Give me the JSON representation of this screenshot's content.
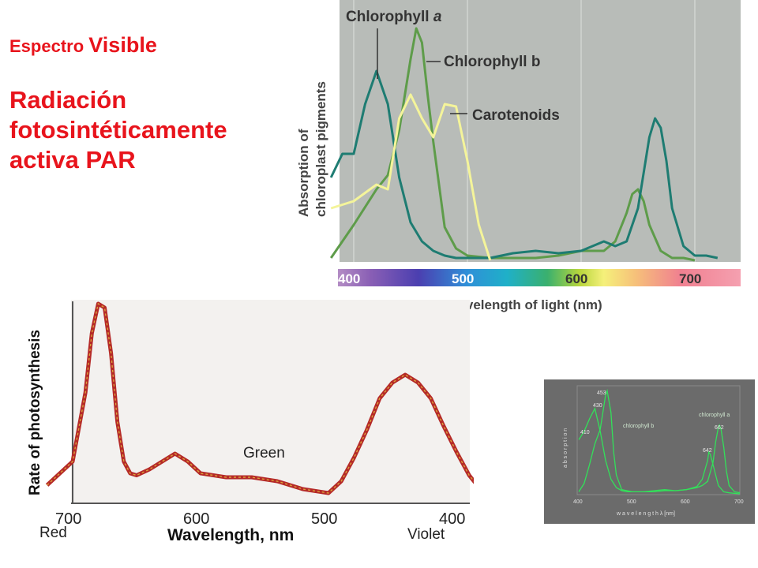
{
  "heading": {
    "prefix": "Espectro",
    "emphasis": "Visible",
    "title_line1": "Radiación",
    "title_line2": "fotosintéticamente",
    "title_line3": "activa PAR"
  },
  "chart_data": [
    {
      "type": "line",
      "title": "",
      "xlabel": "Wavelength of light (nm)",
      "ylabel_line1": "Absorption of",
      "ylabel_line2": "chloroplast pigments",
      "xlim": [
        380,
        730
      ],
      "ticks": [
        "400",
        "500",
        "600",
        "700"
      ],
      "colors": {
        "chlorophyll_a": "#1e7c72",
        "chlorophyll_b": "#5e9c4a",
        "carotenoids": "#f4f49a",
        "background": "#b8bcb8"
      },
      "series": [
        {
          "name": "Chlorophyll a",
          "x": [
            380,
            390,
            400,
            410,
            420,
            430,
            440,
            450,
            460,
            470,
            480,
            490,
            500,
            520,
            540,
            560,
            580,
            600,
            620,
            630,
            640,
            650,
            660,
            665,
            670,
            675,
            680,
            690,
            700,
            710,
            720
          ],
          "y": [
            0.35,
            0.45,
            0.45,
            0.66,
            0.8,
            0.66,
            0.35,
            0.16,
            0.08,
            0.04,
            0.02,
            0.01,
            0.01,
            0.01,
            0.03,
            0.04,
            0.03,
            0.04,
            0.08,
            0.06,
            0.08,
            0.22,
            0.52,
            0.6,
            0.56,
            0.42,
            0.22,
            0.06,
            0.02,
            0.02,
            0.01
          ]
        },
        {
          "name": "Chlorophyll b",
          "x": [
            380,
            400,
            420,
            430,
            440,
            450,
            455,
            460,
            465,
            470,
            475,
            480,
            490,
            500,
            520,
            540,
            560,
            580,
            600,
            620,
            630,
            640,
            645,
            650,
            655,
            660,
            670,
            680,
            690,
            700
          ],
          "y": [
            0.01,
            0.15,
            0.3,
            0.36,
            0.55,
            0.85,
            0.98,
            0.92,
            0.7,
            0.5,
            0.32,
            0.14,
            0.05,
            0.02,
            0.01,
            0.01,
            0.01,
            0.02,
            0.04,
            0.04,
            0.08,
            0.2,
            0.28,
            0.3,
            0.25,
            0.15,
            0.04,
            0.01,
            0.01,
            0.0
          ]
        },
        {
          "name": "Carotenoids",
          "x": [
            380,
            400,
            420,
            430,
            440,
            450,
            460,
            470,
            480,
            490,
            500,
            510,
            520
          ],
          "y": [
            0.22,
            0.25,
            0.32,
            0.3,
            0.6,
            0.7,
            0.6,
            0.52,
            0.66,
            0.65,
            0.42,
            0.15,
            0.0
          ]
        }
      ]
    },
    {
      "type": "line",
      "title": "",
      "xlabel": "Wavelength, nm",
      "ylabel": "Rate of photosynthesis",
      "xlim": [
        720,
        370
      ],
      "ticks": [
        "700",
        "600",
        "500",
        "400"
      ],
      "end_labels": {
        "left": "Red",
        "right": "Violet"
      },
      "annotation": "Green",
      "colors": {
        "line_outer": "#b52a28",
        "line_inner": "#dba33a"
      },
      "series": [
        {
          "name": "",
          "x": [
            720,
            700,
            690,
            685,
            680,
            675,
            670,
            665,
            660,
            655,
            650,
            640,
            620,
            610,
            600,
            580,
            560,
            540,
            520,
            500,
            490,
            480,
            470,
            460,
            450,
            440,
            430,
            420,
            410,
            400,
            390,
            380,
            375
          ],
          "y": [
            0.08,
            0.2,
            0.55,
            0.85,
            1.0,
            0.98,
            0.75,
            0.4,
            0.2,
            0.14,
            0.13,
            0.16,
            0.24,
            0.2,
            0.14,
            0.12,
            0.12,
            0.1,
            0.06,
            0.04,
            0.1,
            0.22,
            0.36,
            0.52,
            0.6,
            0.64,
            0.6,
            0.52,
            0.38,
            0.25,
            0.13,
            0.05,
            0.02
          ]
        }
      ]
    },
    {
      "type": "line",
      "title": "",
      "xlabel": "w a v e l e n g t h   λ [nm]",
      "ylabel": "a b s o r p t i o n",
      "xlim": [
        400,
        700
      ],
      "ticks": [
        "400",
        "500",
        "600",
        "700"
      ],
      "peak_labels": [
        "410",
        "430",
        "453",
        "642",
        "662"
      ],
      "colors": {
        "curves": "#33e05a",
        "background": "#6b6b6b"
      },
      "series": [
        {
          "name": "chlorophyll a",
          "x": [
            400,
            410,
            420,
            430,
            440,
            450,
            460,
            470,
            480,
            490,
            500,
            520,
            540,
            560,
            580,
            600,
            620,
            630,
            640,
            650,
            655,
            660,
            662,
            665,
            670,
            675,
            680,
            690,
            700
          ],
          "y": [
            0.52,
            0.6,
            0.72,
            0.82,
            0.6,
            0.32,
            0.14,
            0.06,
            0.03,
            0.02,
            0.02,
            0.02,
            0.03,
            0.04,
            0.03,
            0.04,
            0.06,
            0.08,
            0.12,
            0.3,
            0.5,
            0.64,
            0.66,
            0.62,
            0.45,
            0.22,
            0.08,
            0.02,
            0.01
          ]
        },
        {
          "name": "chlorophyll b",
          "x": [
            400,
            410,
            420,
            430,
            440,
            450,
            453,
            460,
            465,
            470,
            480,
            500,
            520,
            540,
            560,
            580,
            600,
            620,
            630,
            640,
            642,
            645,
            650,
            660,
            670,
            680,
            700
          ],
          "y": [
            0.02,
            0.1,
            0.28,
            0.48,
            0.62,
            0.95,
            0.99,
            0.78,
            0.4,
            0.18,
            0.04,
            0.02,
            0.02,
            0.02,
            0.03,
            0.03,
            0.04,
            0.07,
            0.14,
            0.32,
            0.4,
            0.38,
            0.28,
            0.08,
            0.02,
            0.01,
            0.0
          ]
        }
      ]
    }
  ]
}
